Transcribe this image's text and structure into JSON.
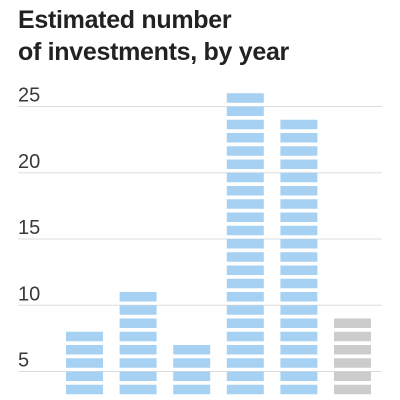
{
  "title_lines": [
    "Estimated number",
    "of investments, by year"
  ],
  "colors": {
    "actual": "#a6d1f2",
    "estimate": "#cccccc",
    "grid": "#dddddd",
    "text": "#222222"
  },
  "chart_data": {
    "type": "bar",
    "title": "Estimated number of investments, by year",
    "xlabel": "",
    "ylabel": "",
    "ylim": [
      3,
      26
    ],
    "yticks": [
      5,
      10,
      15,
      20,
      25
    ],
    "grid": true,
    "categories": [
      "",
      "",
      "",
      "",
      "",
      ""
    ],
    "values": [
      8,
      11,
      7,
      26,
      24,
      9
    ],
    "bar_style": [
      "actual",
      "actual",
      "actual",
      "actual",
      "actual",
      "estimate"
    ],
    "legend": "none"
  }
}
